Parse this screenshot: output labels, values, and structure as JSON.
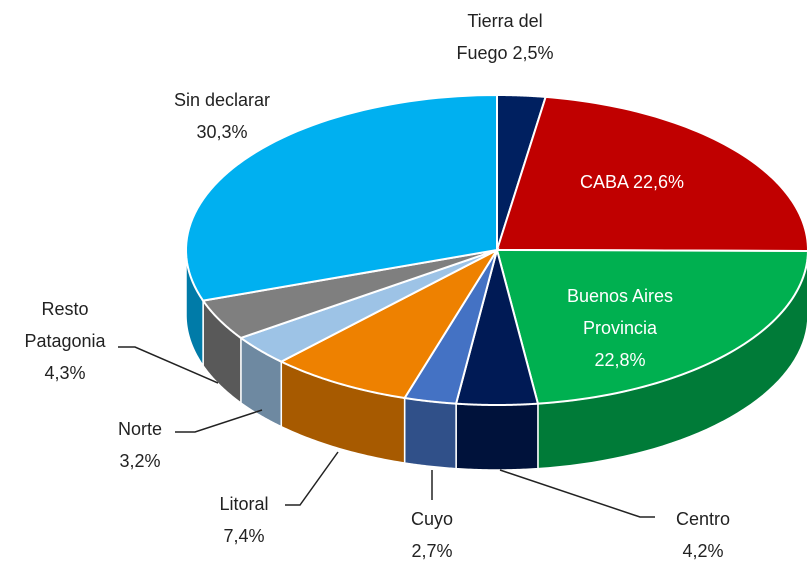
{
  "chart_data": {
    "type": "pie3d",
    "categories": [
      "Tierra del Fuego",
      "CABA",
      "Buenos Aires Provincia",
      "Centro",
      "Cuyo",
      "Litoral",
      "Norte",
      "Resto Patagonia",
      "Sin declarar"
    ],
    "values": [
      2.5,
      22.6,
      22.8,
      4.2,
      2.7,
      7.4,
      3.2,
      4.3,
      30.3
    ],
    "value_labels": [
      "2,5%",
      "22,6%",
      "22,8%",
      "4,2%",
      "2,7%",
      "7,4%",
      "3,2%",
      "4,3%",
      "30,3%"
    ],
    "colors": [
      "#002060",
      "#c00000",
      "#00b050",
      "#001a55",
      "#4472c4",
      "#ee8100",
      "#9dc3e6",
      "#7f7f7f",
      "#00b0f0"
    ]
  }
}
